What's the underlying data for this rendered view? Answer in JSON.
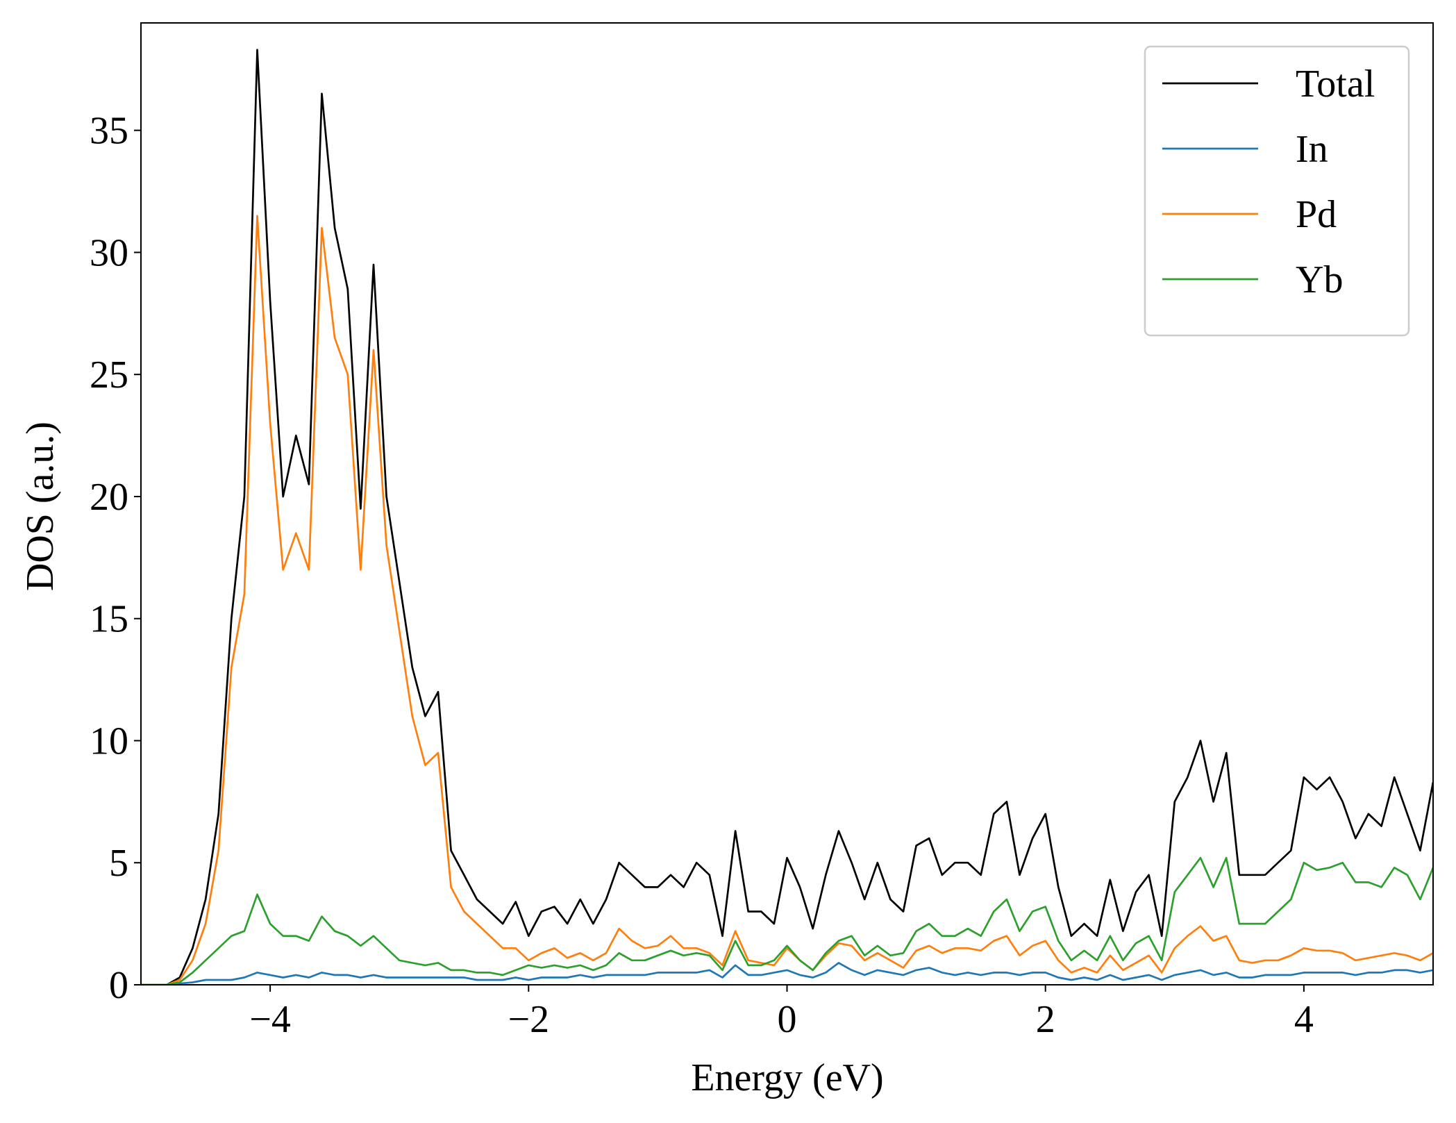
{
  "chart_data": {
    "type": "line",
    "xlabel": "Energy (eV)",
    "ylabel": "DOS (a.u.)",
    "x": [
      -5,
      -4.9,
      -4.8,
      -4.7,
      -4.6,
      -4.5,
      -4.4,
      -4.3,
      -4.2,
      -4.1,
      -4,
      -3.9,
      -3.8,
      -3.7,
      -3.6,
      -3.5,
      -3.4,
      -3.3,
      -3.2,
      -3.1,
      -3,
      -2.9,
      -2.8,
      -2.7,
      -2.6,
      -2.5,
      -2.4,
      -2.3,
      -2.2,
      -2.1,
      -2,
      -1.9,
      -1.8,
      -1.7,
      -1.6,
      -1.5,
      -1.4,
      -1.3,
      -1.2,
      -1.1,
      -1,
      -0.9,
      -0.8,
      -0.7,
      -0.6,
      -0.5,
      -0.4,
      -0.3,
      -0.2,
      -0.1,
      0,
      0.1,
      0.2,
      0.3,
      0.4,
      0.5,
      0.6,
      0.7,
      0.8,
      0.9,
      1,
      1.1,
      1.2,
      1.3,
      1.4,
      1.5,
      1.6,
      1.7,
      1.8,
      1.9,
      2,
      2.1,
      2.2,
      2.3,
      2.4,
      2.5,
      2.6,
      2.7,
      2.8,
      2.9,
      3,
      3.1,
      3.2,
      3.3,
      3.4,
      3.5,
      3.6,
      3.7,
      3.8,
      3.9,
      4,
      4.1,
      4.2,
      4.3,
      4.4,
      4.5,
      4.6,
      4.7,
      4.8,
      4.9,
      5
    ],
    "series": [
      {
        "name": "Total",
        "color": "#000000",
        "values": [
          0,
          0,
          0,
          0.3,
          1.5,
          3.5,
          7,
          15,
          20,
          38.3,
          28,
          20,
          22.5,
          20.5,
          36.5,
          31,
          28.5,
          19.5,
          29.5,
          20,
          16.5,
          13,
          11,
          12,
          5.5,
          4.5,
          3.5,
          3,
          2.5,
          3.4,
          2,
          3,
          3.2,
          2.5,
          3.5,
          2.5,
          3.5,
          5,
          4.5,
          4,
          4,
          4.5,
          4,
          5,
          4.5,
          2,
          6.3,
          3,
          3,
          2.5,
          5.2,
          4,
          2.3,
          4.5,
          6.3,
          5,
          3.5,
          5,
          3.5,
          3,
          5.7,
          6,
          4.5,
          5,
          5,
          4.5,
          7,
          7.5,
          4.5,
          6,
          7,
          4,
          2,
          2.5,
          2,
          4.3,
          2.2,
          3.8,
          4.5,
          2,
          7.5,
          8.5,
          10,
          7.5,
          9.5,
          4.5,
          4.5,
          4.5,
          5,
          5.5,
          8.5,
          8,
          8.5,
          7.5,
          6,
          7,
          6.5,
          8.5,
          7,
          5.5,
          8.3
        ]
      },
      {
        "name": "In",
        "color": "#1f77b4",
        "values": [
          0,
          0,
          0,
          0.05,
          0.1,
          0.2,
          0.2,
          0.2,
          0.3,
          0.5,
          0.4,
          0.3,
          0.4,
          0.3,
          0.5,
          0.4,
          0.4,
          0.3,
          0.4,
          0.3,
          0.3,
          0.3,
          0.3,
          0.3,
          0.3,
          0.3,
          0.2,
          0.2,
          0.2,
          0.3,
          0.2,
          0.3,
          0.3,
          0.3,
          0.4,
          0.3,
          0.4,
          0.4,
          0.4,
          0.4,
          0.5,
          0.5,
          0.5,
          0.5,
          0.6,
          0.3,
          0.8,
          0.4,
          0.4,
          0.5,
          0.6,
          0.4,
          0.3,
          0.5,
          0.9,
          0.6,
          0.4,
          0.6,
          0.5,
          0.4,
          0.6,
          0.7,
          0.5,
          0.4,
          0.5,
          0.4,
          0.5,
          0.5,
          0.4,
          0.5,
          0.5,
          0.3,
          0.2,
          0.3,
          0.2,
          0.4,
          0.2,
          0.3,
          0.4,
          0.2,
          0.4,
          0.5,
          0.6,
          0.4,
          0.5,
          0.3,
          0.3,
          0.4,
          0.4,
          0.4,
          0.5,
          0.5,
          0.5,
          0.5,
          0.4,
          0.5,
          0.5,
          0.6,
          0.6,
          0.5,
          0.6
        ]
      },
      {
        "name": "Pd",
        "color": "#ff7f0e",
        "values": [
          0,
          0,
          0,
          0.2,
          1,
          2.5,
          5.5,
          13,
          16,
          31.5,
          23,
          17,
          18.5,
          17,
          31,
          26.5,
          25,
          17,
          26,
          18,
          14.5,
          11,
          9,
          9.5,
          4,
          3,
          2.5,
          2,
          1.5,
          1.5,
          1,
          1.3,
          1.5,
          1.1,
          1.3,
          1,
          1.3,
          2.3,
          1.8,
          1.5,
          1.6,
          2,
          1.5,
          1.5,
          1.3,
          0.8,
          2.2,
          1,
          0.9,
          0.8,
          1.5,
          1,
          0.6,
          1.2,
          1.7,
          1.6,
          1,
          1.3,
          1,
          0.7,
          1.4,
          1.6,
          1.3,
          1.5,
          1.5,
          1.4,
          1.8,
          2,
          1.2,
          1.6,
          1.8,
          1,
          0.5,
          0.7,
          0.5,
          1.2,
          0.6,
          0.9,
          1.2,
          0.5,
          1.5,
          2,
          2.4,
          1.8,
          2,
          1,
          0.9,
          1,
          1,
          1.2,
          1.5,
          1.4,
          1.4,
          1.3,
          1,
          1.1,
          1.2,
          1.3,
          1.2,
          1,
          1.3
        ]
      },
      {
        "name": "Yb",
        "color": "#2ca02c",
        "values": [
          0,
          0,
          0,
          0.1,
          0.5,
          1,
          1.5,
          2,
          2.2,
          3.7,
          2.5,
          2,
          2,
          1.8,
          2.8,
          2.2,
          2,
          1.6,
          2,
          1.5,
          1,
          0.9,
          0.8,
          0.9,
          0.6,
          0.6,
          0.5,
          0.5,
          0.4,
          0.6,
          0.8,
          0.7,
          0.8,
          0.7,
          0.8,
          0.6,
          0.8,
          1.3,
          1,
          1,
          1.2,
          1.4,
          1.2,
          1.3,
          1.2,
          0.6,
          1.8,
          0.8,
          0.8,
          1,
          1.6,
          1,
          0.6,
          1.3,
          1.8,
          2,
          1.2,
          1.6,
          1.2,
          1.3,
          2.2,
          2.5,
          2,
          2,
          2.3,
          2,
          3,
          3.5,
          2.2,
          3,
          3.2,
          1.8,
          1,
          1.4,
          1,
          2,
          1,
          1.7,
          2,
          1,
          3.8,
          4.5,
          5.2,
          4,
          5.2,
          2.5,
          2.5,
          2.5,
          3,
          3.5,
          5,
          4.7,
          4.8,
          5,
          4.2,
          4.2,
          4,
          4.8,
          4.5,
          3.5,
          4.8
        ]
      }
    ],
    "xlim": [
      -5,
      5
    ],
    "ylim": [
      0,
      39.4
    ],
    "xticks": [
      {
        "value": -4,
        "label": "−4"
      },
      {
        "value": -2,
        "label": "−2"
      },
      0,
      2,
      4
    ],
    "yticks": [
      0,
      5,
      10,
      15,
      20,
      25,
      30,
      35
    ],
    "legend": "upper right",
    "grid": false
  }
}
